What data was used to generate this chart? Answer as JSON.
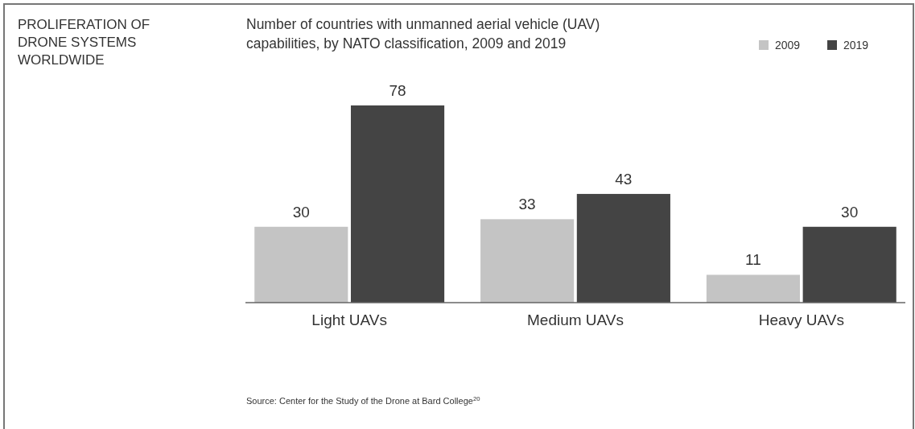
{
  "chart_data": {
    "type": "bar",
    "title": "PROLIFERATION OF DRONE SYSTEMS WORLDWIDE",
    "subtitle": "Number of countries with unmanned aerial vehicle (UAV) capabilities, by NATO classification, 2009 and 2019",
    "categories": [
      "Light UAVs",
      "Medium UAVs",
      "Heavy UAVs"
    ],
    "series": [
      {
        "name": "2009",
        "color": "#c4c4c4",
        "values": [
          30,
          33,
          11
        ]
      },
      {
        "name": "2019",
        "color": "#444444",
        "values": [
          78,
          43,
          30
        ]
      }
    ],
    "data_labels": true,
    "legend": "top right",
    "annotations": [
      "Source: Center for the Study of the Drone at Bard College$^{20}$"
    ]
  }
}
